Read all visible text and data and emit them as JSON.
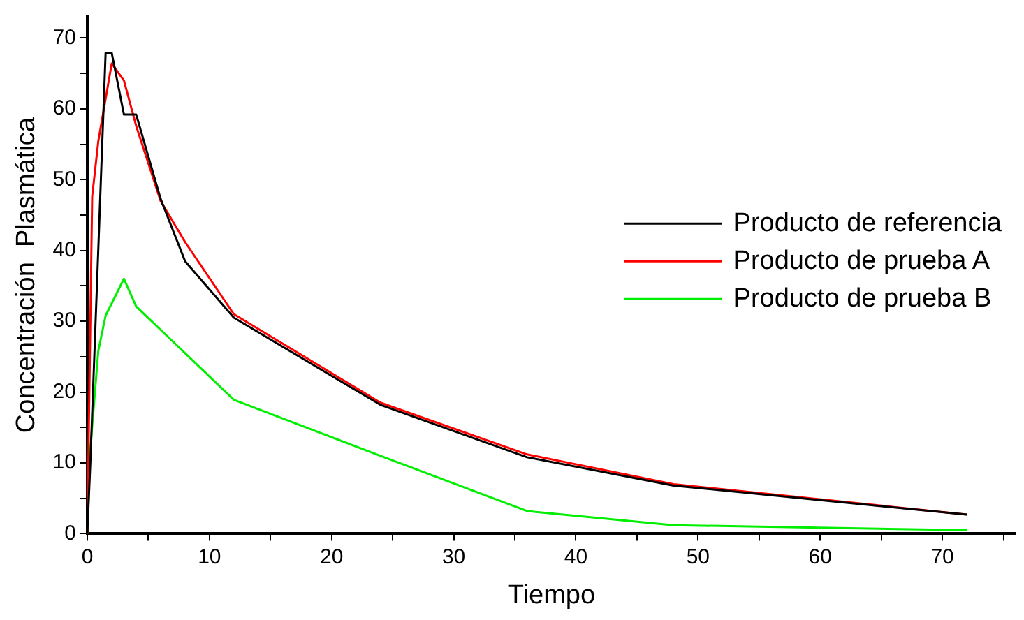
{
  "chart_data": {
    "type": "line",
    "xlabel": "Tiempo",
    "ylabel": "Concentración  Plasmática",
    "xlim": [
      0,
      76
    ],
    "ylim": [
      0,
      73
    ],
    "xticks": [
      0,
      {
        "value": 5,
        "label": null
      },
      10,
      {
        "value": 15,
        "label": null
      },
      20,
      {
        "value": 25,
        "label": null
      },
      30,
      {
        "value": 35,
        "label": null
      },
      40,
      {
        "value": 45,
        "label": null
      },
      50,
      {
        "value": 55,
        "label": null
      },
      60,
      {
        "value": 65,
        "label": null
      },
      70,
      {
        "value": 75,
        "label": null
      }
    ],
    "yticks": [
      0,
      {
        "value": 5,
        "label": null
      },
      10,
      {
        "value": 15,
        "label": null
      },
      20,
      {
        "value": 25,
        "label": null
      },
      30,
      {
        "value": 35,
        "label": null
      },
      40,
      {
        "value": 45,
        "label": null
      },
      50,
      {
        "value": 55,
        "label": null
      },
      60,
      {
        "value": 65,
        "label": null
      },
      70
    ],
    "grid": false,
    "legend": "right",
    "marker": "none",
    "line_style": "solid",
    "series": [
      {
        "name": "Producto de referencia",
        "color": "#000000",
        "x": [
          0,
          0.25,
          1.5,
          2,
          3,
          4,
          6,
          8,
          12,
          24,
          36,
          48,
          72
        ],
        "values": [
          0,
          10,
          67.9,
          67.9,
          59.2,
          59.2,
          47.3,
          38.5,
          30.5,
          18.2,
          10.8,
          6.8,
          2.7
        ]
      },
      {
        "name": "Producto de prueba A",
        "color": "#ff0000",
        "x": [
          0,
          0.4,
          0.9,
          2,
          3,
          4,
          6,
          8,
          12,
          24,
          36,
          48,
          72
        ],
        "values": [
          0,
          47.6,
          55.4,
          66.4,
          64,
          57.6,
          47,
          41.2,
          31,
          18.5,
          11.2,
          7,
          2.7
        ]
      },
      {
        "name": "Producto de prueba B",
        "color": "#00ee00",
        "x": [
          0,
          0.25,
          0.9,
          1.5,
          3,
          4,
          12,
          24,
          36,
          48,
          72
        ],
        "values": [
          0,
          12,
          25.8,
          30.8,
          36,
          32.1,
          18.9,
          11,
          3.2,
          1.2,
          0.5
        ]
      }
    ]
  }
}
